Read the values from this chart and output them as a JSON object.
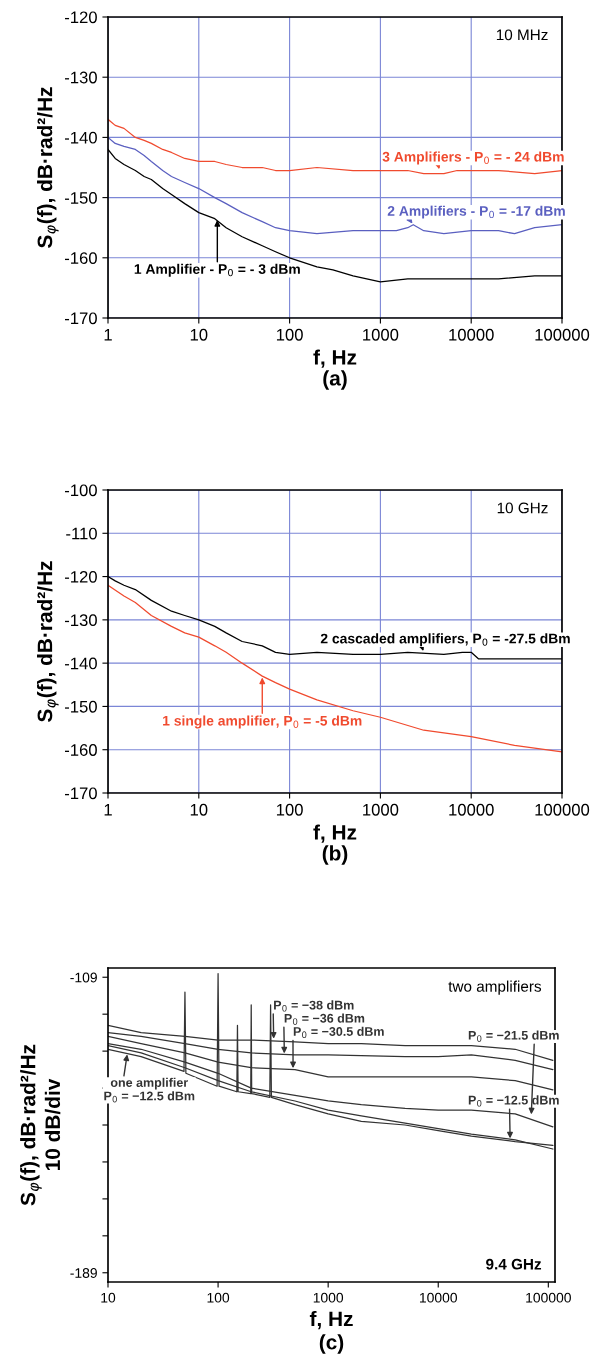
{
  "chart_data": [
    {
      "type": "line",
      "title": "(a)",
      "xlabel": "f, Hz",
      "ylabel": "S$_{φ}$(f), dB·rad²/Hz",
      "log": "x",
      "grid": true,
      "xlim": [
        1,
        100000
      ],
      "xticks": [
        1,
        10,
        100,
        1000,
        10000,
        100000
      ],
      "ylim": [
        -170,
        -120
      ],
      "yticks": [
        -170,
        -160,
        -150,
        -140,
        -130,
        -120
      ],
      "series": [
        {
          "color": "#f04a2e",
          "x": [
            1,
            1.2,
            1.5,
            2,
            2.5,
            3,
            4,
            5,
            7,
            10,
            15,
            20,
            30,
            50,
            70,
            100,
            200,
            500,
            1000,
            1500,
            2000,
            3000,
            5000,
            7000,
            10000,
            20000,
            50000,
            100000
          ],
          "values": [
            -137,
            -138,
            -138.5,
            -140,
            -140.5,
            -141,
            -142,
            -142.5,
            -143.5,
            -144,
            -144,
            -144.5,
            -145,
            -145,
            -145.5,
            -145.5,
            -145,
            -145.5,
            -145.5,
            -145.5,
            -145.5,
            -146,
            -146,
            -145.5,
            -145.5,
            -145.5,
            -146,
            -145.5
          ]
        },
        {
          "color": "#5a5fc0",
          "x": [
            1,
            1.2,
            1.5,
            2,
            2.5,
            3,
            4,
            5,
            7,
            10,
            15,
            20,
            30,
            50,
            70,
            100,
            200,
            500,
            1000,
            1500,
            2000,
            2300,
            3000,
            5000,
            10000,
            20000,
            30000,
            50000,
            100000
          ],
          "values": [
            -140,
            -141,
            -141.5,
            -142,
            -143,
            -144,
            -145.5,
            -146.5,
            -147.5,
            -148.5,
            -150,
            -151,
            -152.5,
            -154,
            -155,
            -155.5,
            -156,
            -155.5,
            -155.5,
            -155.5,
            -155,
            -154.5,
            -155.5,
            -156,
            -155.5,
            -155.5,
            -156,
            -155,
            -154.5
          ]
        },
        {
          "color": "#000000",
          "x": [
            1,
            1.2,
            1.5,
            2,
            2.5,
            3,
            4,
            5,
            7,
            10,
            15,
            20,
            30,
            50,
            70,
            100,
            200,
            300,
            500,
            1000,
            2000,
            5000,
            10000,
            20000,
            50000,
            100000
          ],
          "values": [
            -142,
            -143.5,
            -144.5,
            -145.5,
            -146.5,
            -147,
            -148.5,
            -149.5,
            -151,
            -152.5,
            -153.5,
            -155,
            -156.5,
            -158,
            -159,
            -160,
            -161.5,
            -162,
            -163,
            -164,
            -163.5,
            -163.5,
            -163.5,
            -163.5,
            -163,
            -163
          ]
        }
      ],
      "annotations": [
        "10 MHz",
        {
          "text": "3 Amplifiers - P$_{0}$ = - 24 dBm",
          "x": 4500,
          "y": -145.5
        },
        {
          "text": "2 Amplifiers - P$_{0}$ = -17 dBm",
          "x": 2300,
          "y": -154.5
        },
        {
          "text": "1 Amplifier - P$_{0}$ = - 3 dBm",
          "x": 16,
          "y": -153.5
        }
      ]
    },
    {
      "type": "line",
      "title": "(b)",
      "xlabel": "f, Hz",
      "ylabel": "S$_{φ}$(f), dB·rad²/Hz",
      "log": "x",
      "grid": true,
      "xlim": [
        1,
        100000
      ],
      "xticks": [
        1,
        10,
        100,
        1000,
        10000,
        100000
      ],
      "ylim": [
        -170,
        -100
      ],
      "yticks": [
        -170,
        -160,
        -150,
        -140,
        -130,
        -120,
        -110,
        -100
      ],
      "series": [
        {
          "color": "#000000",
          "x": [
            1,
            1.2,
            1.5,
            2,
            3,
            5,
            7,
            10,
            15,
            20,
            30,
            50,
            70,
            100,
            200,
            500,
            1000,
            2000,
            5000,
            8000,
            10000,
            12000,
            20000,
            50000,
            100000
          ],
          "values": [
            -120,
            -121,
            -122,
            -123,
            -125.5,
            -128,
            -129,
            -130,
            -131.5,
            -133,
            -135,
            -136,
            -137.5,
            -138,
            -137.5,
            -138,
            -138,
            -137.5,
            -138,
            -137.5,
            -137.5,
            -139,
            -139,
            -139,
            -139
          ]
        },
        {
          "color": "#f04a2e",
          "x": [
            1,
            1.5,
            2,
            3,
            5,
            7,
            10,
            15,
            20,
            30,
            50,
            70,
            100,
            200,
            500,
            1000,
            3000,
            10000,
            30000,
            100000
          ],
          "values": [
            -122,
            -124.5,
            -126,
            -129,
            -131.5,
            -133,
            -134,
            -136,
            -137.5,
            -140,
            -143,
            -144.5,
            -146,
            -148.5,
            -151,
            -152.5,
            -155.5,
            -157,
            -159,
            -160.5
          ]
        }
      ],
      "annotations": [
        "10 GHz",
        {
          "text": "2 cascaded amplifiers, P$_{0}$ = -27.5 dBm",
          "x": 3000,
          "y": -137.5
        },
        {
          "text": "1 single amplifier, P$_{0}$ = -5 dBm",
          "x": 50,
          "y": -143
        }
      ]
    },
    {
      "type": "line",
      "title": "(c)",
      "xlabel": "f, Hz",
      "ylabel": "S$_{φ}$(f), dB·rad²/Hz\n10 dB/div",
      "log": "x",
      "xlim": [
        10,
        115000
      ],
      "xticks": [
        10,
        100,
        1000,
        10000,
        100000
      ],
      "ylim": [
        -191.5,
        -106.5
      ],
      "yticks": [
        -189,
        {
          "value": -179,
          "label": null
        },
        {
          "value": -169,
          "label": null
        },
        {
          "value": -159,
          "label": null
        },
        {
          "value": -149,
          "label": null
        },
        {
          "value": -139,
          "label": null
        },
        {
          "value": -129,
          "label": null
        },
        {
          "value": -119,
          "label": null
        },
        -109
      ],
      "series": [
        {
          "color": "#333333",
          "x": [
            10,
            20,
            50,
            100,
            200,
            500,
            1000,
            2000,
            5000,
            10000,
            20000,
            50000,
            110000
          ],
          "values": [
            -122,
            -124,
            -125,
            -126,
            -126,
            -126.5,
            -127,
            -127,
            -127.5,
            -127.5,
            -127.5,
            -128.5,
            -131.5
          ]
        },
        {
          "color": "#333333",
          "x": [
            10,
            20,
            50,
            100,
            200,
            500,
            1000,
            5000,
            10000,
            20000,
            50000,
            110000
          ],
          "values": [
            -124,
            -125,
            -127,
            -128.5,
            -129.5,
            -130,
            -130,
            -130.5,
            -130.5,
            -130,
            -131.5,
            -134
          ]
        },
        {
          "color": "#333333",
          "x": [
            10,
            20,
            50,
            100,
            200,
            500,
            1000,
            5000,
            10000,
            20000,
            50000,
            110000
          ],
          "values": [
            -125,
            -127,
            -129.5,
            -132,
            -133.5,
            -134,
            -136,
            -136,
            -136,
            -136,
            -137,
            -139.5
          ]
        },
        {
          "color": "#333333",
          "x": [
            10,
            20,
            50,
            100,
            200,
            500,
            1000,
            2000,
            5000,
            10000,
            20000,
            50000,
            110000
          ],
          "values": [
            -127,
            -128.5,
            -132,
            -135,
            -139,
            -141,
            -142.5,
            -143.5,
            -144.5,
            -145,
            -145,
            -146,
            -149.5
          ]
        },
        {
          "color": "#333333",
          "x": [
            10,
            20,
            50,
            100,
            200,
            500,
            1000,
            2000,
            5000,
            10000,
            20000,
            50000,
            110000
          ],
          "values": [
            -127.5,
            -129.5,
            -133.5,
            -137,
            -140,
            -142.5,
            -145,
            -146.5,
            -148.5,
            -150,
            -151.5,
            -153,
            -155.5
          ]
        },
        {
          "color": "#333333",
          "x": [
            10,
            20,
            49,
            50,
            51,
            98,
            100,
            102,
            148,
            150,
            152,
            198,
            200,
            202,
            295,
            300,
            305,
            500,
            1000,
            2000,
            5000,
            10000,
            20000,
            50000,
            110000
          ],
          "values": [
            -128.5,
            -130.5,
            -134.5,
            -113,
            -135,
            -138.5,
            -108,
            -138.5,
            -140,
            -122,
            -140,
            -140.5,
            -116.5,
            -140.5,
            -141.5,
            -116.5,
            -141.5,
            -143.5,
            -146,
            -148,
            -149,
            -150.5,
            -152,
            -153.5,
            -154.5
          ]
        }
      ],
      "annotations": [
        "two amplifiers",
        "9.4 GHz",
        {
          "text": "P$_{0}$ = −38 dBm",
          "x": 320,
          "y": -126
        },
        {
          "text": "P$_{0}$ = −36 dBm",
          "x": 400,
          "y": -130
        },
        {
          "text": "P$_{0}$ = −30.5 dBm",
          "x": 480,
          "y": -134
        },
        {
          "text": "P$_{0}$ = −21.5 dBm",
          "x": 70000,
          "y": -146.5
        },
        {
          "text": "P$_{0}$ = −12.5 dBm",
          "x": 45000,
          "y": -153
        },
        {
          "text": "one amplifier\nP$_{0}$ = −12.5 dBm",
          "x": 15,
          "y": -129.5
        }
      ]
    }
  ]
}
